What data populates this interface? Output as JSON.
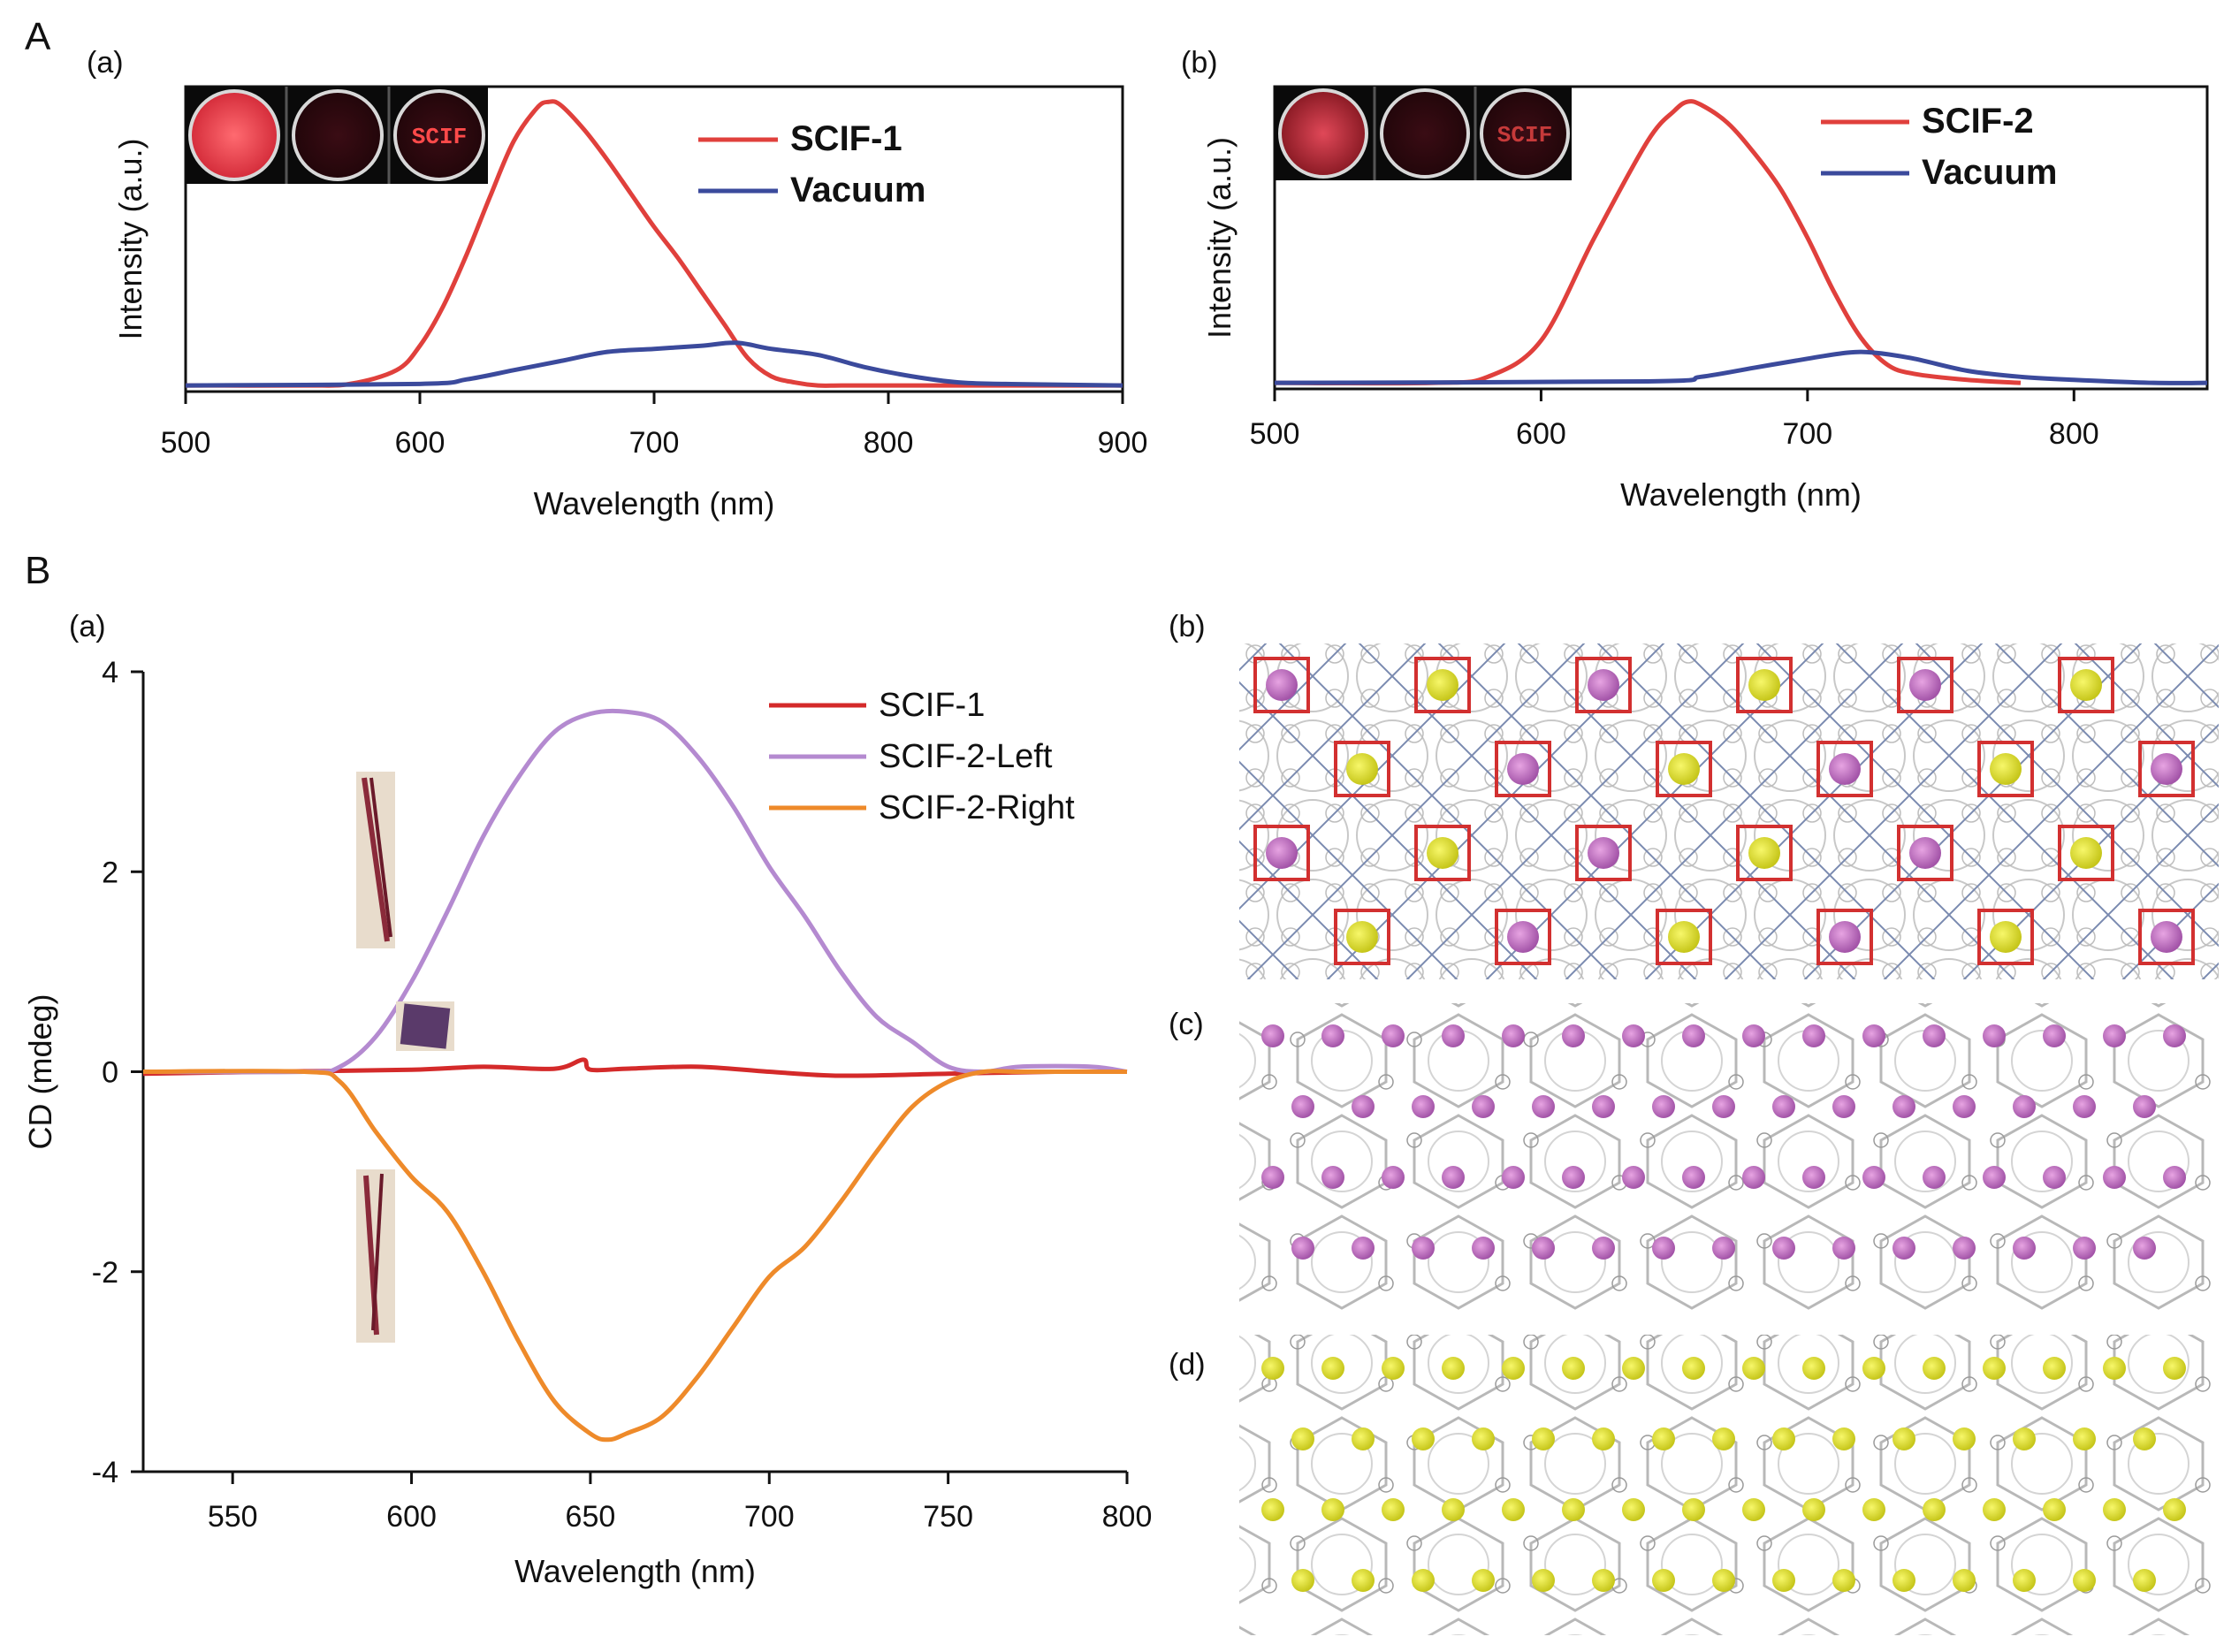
{
  "panels": {
    "A": "A",
    "B": "B"
  },
  "sublabels": {
    "Aa": "(a)",
    "Ab": "(b)",
    "Ba": "(a)",
    "Bb": "(b)",
    "Bc": "(c)",
    "Bd": "(d)"
  },
  "colors": {
    "red": "#e0403c",
    "blue": "#3b4a9c",
    "purple": "#b48ad0",
    "orange": "#ee8a2a",
    "darkred": "#d42a2a"
  },
  "insets": {
    "scif_text": "SCIF"
  },
  "chart_data": [
    {
      "id": "Aa",
      "type": "line",
      "xlabel": "Wavelength (nm)",
      "ylabel": "Intensity (a.u.)",
      "xlim": [
        500,
        900
      ],
      "ylim": [
        0,
        1.0
      ],
      "xticks": [
        500,
        600,
        700,
        800,
        900
      ],
      "show_yticks": false,
      "legend_position": "top-right",
      "series": [
        {
          "name": "SCIF-1",
          "color": "#e0403c",
          "x": [
            500,
            550,
            570,
            590,
            600,
            610,
            620,
            630,
            640,
            650,
            655,
            660,
            670,
            680,
            690,
            700,
            710,
            720,
            730,
            740,
            750,
            760,
            770,
            780,
            800,
            900
          ],
          "y": [
            0.02,
            0.02,
            0.025,
            0.07,
            0.15,
            0.28,
            0.45,
            0.64,
            0.82,
            0.93,
            0.95,
            0.94,
            0.86,
            0.76,
            0.65,
            0.54,
            0.44,
            0.33,
            0.22,
            0.11,
            0.05,
            0.03,
            0.02,
            0.02,
            0.02,
            0.02
          ]
        },
        {
          "name": "Vacuum",
          "color": "#3b4a9c",
          "x": [
            500,
            600,
            620,
            640,
            660,
            680,
            700,
            720,
            735,
            750,
            770,
            790,
            810,
            830,
            850,
            900
          ],
          "y": [
            0.02,
            0.025,
            0.04,
            0.07,
            0.1,
            0.13,
            0.14,
            0.15,
            0.16,
            0.14,
            0.12,
            0.08,
            0.05,
            0.03,
            0.025,
            0.02
          ]
        }
      ]
    },
    {
      "id": "Ab",
      "type": "line",
      "xlabel": "Wavelength (nm)",
      "ylabel": "Intensity (a.u.)",
      "xlim": [
        500,
        850
      ],
      "ylim": [
        0,
        1.0
      ],
      "xticks": [
        500,
        600,
        700,
        800
      ],
      "show_yticks": false,
      "legend_position": "top-right",
      "series": [
        {
          "name": "SCIF-2",
          "color": "#e0403c",
          "x": [
            500,
            560,
            580,
            600,
            620,
            640,
            650,
            655,
            660,
            670,
            680,
            690,
            700,
            710,
            720,
            730,
            740,
            760,
            780
          ],
          "y": [
            0.02,
            0.02,
            0.04,
            0.16,
            0.5,
            0.82,
            0.92,
            0.95,
            0.94,
            0.88,
            0.78,
            0.66,
            0.5,
            0.32,
            0.17,
            0.08,
            0.05,
            0.03,
            0.02
          ]
        },
        {
          "name": "Vacuum",
          "color": "#3b4a9c",
          "x": [
            500,
            640,
            660,
            680,
            700,
            715,
            725,
            740,
            760,
            780,
            800,
            830,
            850
          ],
          "y": [
            0.02,
            0.025,
            0.04,
            0.07,
            0.1,
            0.12,
            0.12,
            0.1,
            0.06,
            0.04,
            0.03,
            0.02,
            0.02
          ]
        }
      ]
    },
    {
      "id": "Ba",
      "type": "line",
      "xlabel": "Wavelength (nm)",
      "ylabel": "CD (mdeg)",
      "xlim": [
        525,
        800
      ],
      "ylim": [
        -4,
        4
      ],
      "xticks": [
        550,
        600,
        650,
        700,
        750,
        800
      ],
      "yticks": [
        -4,
        -2,
        0,
        2,
        4
      ],
      "legend_position": "top-right",
      "series": [
        {
          "name": "SCIF-1",
          "color": "#d42a2a",
          "x": [
            525,
            560,
            600,
            620,
            640,
            648,
            650,
            660,
            680,
            700,
            720,
            750,
            780,
            800
          ],
          "y": [
            -0.02,
            0.0,
            0.02,
            0.05,
            0.03,
            0.12,
            0.02,
            0.03,
            0.05,
            0.0,
            -0.04,
            -0.02,
            0.0,
            0.0
          ]
        },
        {
          "name": "SCIF-2-Left",
          "color": "#b48ad0",
          "x": [
            525,
            570,
            580,
            590,
            600,
            610,
            620,
            630,
            640,
            650,
            660,
            670,
            680,
            690,
            700,
            710,
            720,
            730,
            740,
            750,
            760,
            770,
            790,
            800
          ],
          "y": [
            0.0,
            0.0,
            0.05,
            0.35,
            0.9,
            1.6,
            2.35,
            2.95,
            3.4,
            3.58,
            3.6,
            3.5,
            3.15,
            2.65,
            2.05,
            1.55,
            1.0,
            0.55,
            0.3,
            0.05,
            0.0,
            0.05,
            0.05,
            0.0
          ]
        },
        {
          "name": "SCIF-2-Right",
          "color": "#ee8a2a",
          "x": [
            525,
            570,
            580,
            590,
            600,
            610,
            620,
            630,
            640,
            650,
            655,
            660,
            670,
            680,
            690,
            700,
            710,
            720,
            730,
            740,
            750,
            760,
            770,
            800
          ],
          "y": [
            0.0,
            0.0,
            -0.1,
            -0.6,
            -1.05,
            -1.4,
            -2.0,
            -2.7,
            -3.3,
            -3.62,
            -3.68,
            -3.62,
            -3.45,
            -3.05,
            -2.55,
            -2.05,
            -1.75,
            -1.3,
            -0.8,
            -0.35,
            -0.1,
            0.0,
            0.0,
            0.0
          ]
        }
      ]
    }
  ]
}
